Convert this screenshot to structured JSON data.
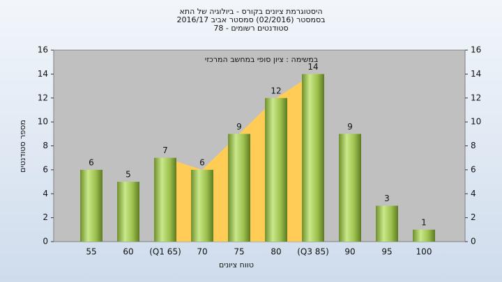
{
  "chart_data": {
    "type": "bar",
    "title": "היסטוגרמת ציונים בקורס - ביולוגיה של התא",
    "subtitle": "בסמסטר (02/2016) סמסטר אביב 2016/17",
    "subtitle2": "סטודנטים רשומים - 78",
    "annotation": "במשימה : ציון סופי במחשב המרכזי",
    "x_label": "טווח ציונים",
    "y_label": "מספר סטודנטים",
    "categories": [
      "55",
      "60",
      "(Q1 65)",
      "70",
      "75",
      "80",
      "(Q3 85)",
      "90",
      "95",
      "100"
    ],
    "values": [
      6,
      5,
      7,
      6,
      9,
      12,
      14,
      9,
      3,
      1
    ],
    "ylim": [
      0,
      16
    ],
    "yticks": [
      0,
      2,
      4,
      6,
      8,
      10,
      12,
      14,
      16
    ],
    "y2lim": [
      0,
      16
    ],
    "y2ticks": [
      0,
      2,
      4,
      6,
      8,
      10,
      12,
      14,
      16
    ],
    "iqr_color": "#ffcc55"
  }
}
